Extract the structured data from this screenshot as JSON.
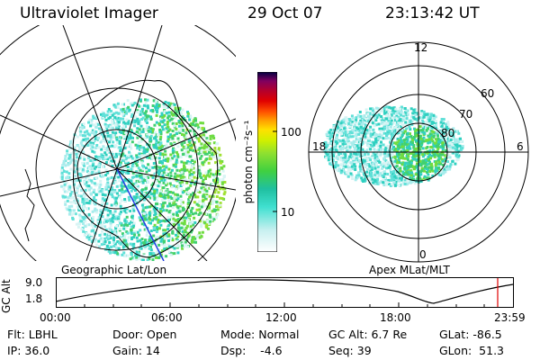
{
  "header": {
    "instrument": "Ultraviolet Imager",
    "date": "29 Oct 07",
    "time": "23:13:42 UT"
  },
  "colorbar": {
    "unit_label": "photon cm⁻²s⁻¹",
    "ticks": [
      "100",
      "10"
    ],
    "colors": [
      "#ffffff",
      "#c8f0f0",
      "#40e0d0",
      "#20c0a0",
      "#40d040",
      "#90e030",
      "#d0f000",
      "#ffe000",
      "#ffa000",
      "#ff5000",
      "#e00000",
      "#b00030",
      "#800060",
      "#400070",
      "#000040"
    ]
  },
  "left_map": {
    "caption": "Geographic Lat/Lon"
  },
  "right_map": {
    "caption": "Apex  MLat/MLT",
    "mlt_labels": {
      "top": "12",
      "left": "18",
      "right": "6",
      "bottom": "0"
    },
    "lat_labels": [
      "60",
      "70",
      "80"
    ]
  },
  "altitude_plot": {
    "ylabel": "GC Alt",
    "ymax_label": "9.0",
    "ymin_label": "1.8",
    "time_ticks": [
      "00:00",
      "06:00",
      "12:00",
      "18:00",
      "23:59"
    ]
  },
  "info": {
    "row1": {
      "flt": "Flt: LBHL",
      "door": "Door: Open",
      "mode": "Mode: Normal",
      "gcalt": "GC Alt: 6.7 Re",
      "glat": "GLat: -86.5"
    },
    "row2": {
      "ip": "IP: 36.0",
      "gain": "Gain: 14",
      "dsp": "Dsp:    -4.6",
      "seq": "Seq: 39",
      "glon": "GLon:  51.3"
    }
  }
}
